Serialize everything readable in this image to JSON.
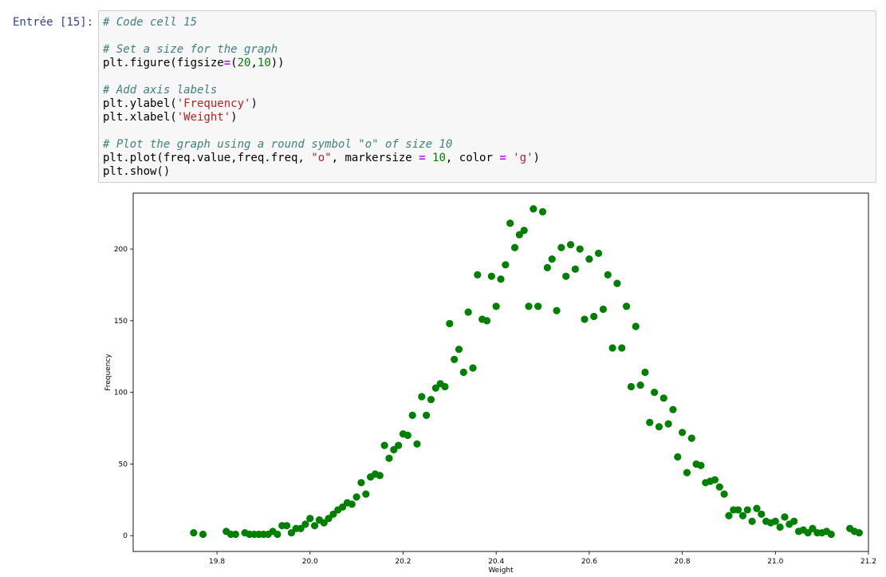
{
  "cell": {
    "prompt": "Entrée [15]:",
    "code_lines": [
      [
        {
          "t": "comment",
          "s": "# Code cell 15"
        }
      ],
      [],
      [
        {
          "t": "comment",
          "s": "# Set a size for the graph"
        }
      ],
      [
        {
          "t": "text",
          "s": "plt.figure(figsize"
        },
        {
          "t": "op",
          "s": "="
        },
        {
          "t": "text",
          "s": "("
        },
        {
          "t": "number",
          "s": "20"
        },
        {
          "t": "text",
          "s": ","
        },
        {
          "t": "number",
          "s": "10"
        },
        {
          "t": "text",
          "s": "))"
        }
      ],
      [],
      [
        {
          "t": "comment",
          "s": "# Add axis labels"
        }
      ],
      [
        {
          "t": "text",
          "s": "plt.ylabel("
        },
        {
          "t": "string",
          "s": "'Frequency'"
        },
        {
          "t": "text",
          "s": ")"
        }
      ],
      [
        {
          "t": "text",
          "s": "plt.xlabel("
        },
        {
          "t": "string",
          "s": "'Weight'"
        },
        {
          "t": "text",
          "s": ")"
        }
      ],
      [],
      [
        {
          "t": "comment",
          "s": "# Plot the graph using a round symbol \"o\" of size 10"
        }
      ],
      [
        {
          "t": "text",
          "s": "plt.plot(freq.value,freq.freq, "
        },
        {
          "t": "string",
          "s": "\"o\""
        },
        {
          "t": "text",
          "s": ", markersize "
        },
        {
          "t": "op",
          "s": "="
        },
        {
          "t": "text",
          "s": " "
        },
        {
          "t": "number",
          "s": "10"
        },
        {
          "t": "text",
          "s": ", color "
        },
        {
          "t": "op",
          "s": "="
        },
        {
          "t": "text",
          "s": " "
        },
        {
          "t": "string",
          "s": "'g'"
        },
        {
          "t": "text",
          "s": ")"
        }
      ],
      [
        {
          "t": "text",
          "s": "plt.show()"
        }
      ]
    ]
  },
  "colors": {
    "prompt": "#303f9f",
    "marker": "#008000",
    "code_bg": "#f7f7f7"
  },
  "chart_data": {
    "type": "scatter",
    "title": "",
    "xlabel": "Weight",
    "ylabel": "Frequency",
    "xlim": [
      19.62,
      21.2
    ],
    "ylim": [
      -11,
      239
    ],
    "xticks": [
      "19.8",
      "20.0",
      "20.2",
      "20.4",
      "20.6",
      "20.8",
      "21.0",
      "21.2"
    ],
    "yticks": [
      "0",
      "50",
      "100",
      "150",
      "200"
    ],
    "grid": false,
    "marker": "o",
    "color": "#008000",
    "points": [
      [
        19.75,
        2
      ],
      [
        19.77,
        1
      ],
      [
        19.82,
        3
      ],
      [
        19.83,
        1
      ],
      [
        19.84,
        1
      ],
      [
        19.86,
        2
      ],
      [
        19.87,
        1
      ],
      [
        19.88,
        1
      ],
      [
        19.89,
        1
      ],
      [
        19.9,
        1
      ],
      [
        19.91,
        1
      ],
      [
        19.92,
        3
      ],
      [
        19.93,
        1
      ],
      [
        19.94,
        7
      ],
      [
        19.95,
        7
      ],
      [
        19.96,
        2
      ],
      [
        19.97,
        5
      ],
      [
        19.98,
        5
      ],
      [
        19.99,
        8
      ],
      [
        20.0,
        12
      ],
      [
        20.01,
        7
      ],
      [
        20.02,
        11
      ],
      [
        20.03,
        9
      ],
      [
        20.04,
        12
      ],
      [
        20.05,
        15
      ],
      [
        20.06,
        18
      ],
      [
        20.07,
        20
      ],
      [
        20.08,
        23
      ],
      [
        20.09,
        22
      ],
      [
        20.1,
        27
      ],
      [
        20.11,
        37
      ],
      [
        20.12,
        29
      ],
      [
        20.13,
        41
      ],
      [
        20.14,
        43
      ],
      [
        20.15,
        42
      ],
      [
        20.16,
        63
      ],
      [
        20.17,
        54
      ],
      [
        20.18,
        60
      ],
      [
        20.19,
        63
      ],
      [
        20.2,
        71
      ],
      [
        20.21,
        70
      ],
      [
        20.22,
        84
      ],
      [
        20.23,
        64
      ],
      [
        20.24,
        97
      ],
      [
        20.25,
        84
      ],
      [
        20.26,
        95
      ],
      [
        20.27,
        103
      ],
      [
        20.28,
        106
      ],
      [
        20.29,
        104
      ],
      [
        20.3,
        148
      ],
      [
        20.31,
        123
      ],
      [
        20.32,
        130
      ],
      [
        20.33,
        114
      ],
      [
        20.34,
        156
      ],
      [
        20.35,
        117
      ],
      [
        20.36,
        182
      ],
      [
        20.37,
        151
      ],
      [
        20.38,
        150
      ],
      [
        20.39,
        181
      ],
      [
        20.4,
        160
      ],
      [
        20.41,
        179
      ],
      [
        20.42,
        189
      ],
      [
        20.43,
        218
      ],
      [
        20.44,
        201
      ],
      [
        20.45,
        210
      ],
      [
        20.46,
        213
      ],
      [
        20.47,
        160
      ],
      [
        20.48,
        228
      ],
      [
        20.49,
        160
      ],
      [
        20.5,
        226
      ],
      [
        20.51,
        187
      ],
      [
        20.52,
        193
      ],
      [
        20.53,
        157
      ],
      [
        20.54,
        201
      ],
      [
        20.55,
        181
      ],
      [
        20.56,
        203
      ],
      [
        20.57,
        186
      ],
      [
        20.58,
        200
      ],
      [
        20.59,
        151
      ],
      [
        20.6,
        193
      ],
      [
        20.61,
        153
      ],
      [
        20.62,
        197
      ],
      [
        20.63,
        158
      ],
      [
        20.64,
        182
      ],
      [
        20.65,
        131
      ],
      [
        20.66,
        176
      ],
      [
        20.67,
        131
      ],
      [
        20.68,
        160
      ],
      [
        20.69,
        104
      ],
      [
        20.7,
        146
      ],
      [
        20.71,
        105
      ],
      [
        20.72,
        114
      ],
      [
        20.73,
        79
      ],
      [
        20.74,
        100
      ],
      [
        20.75,
        76
      ],
      [
        20.76,
        96
      ],
      [
        20.77,
        78
      ],
      [
        20.78,
        88
      ],
      [
        20.79,
        55
      ],
      [
        20.8,
        72
      ],
      [
        20.81,
        44
      ],
      [
        20.82,
        68
      ],
      [
        20.83,
        50
      ],
      [
        20.84,
        49
      ],
      [
        20.85,
        37
      ],
      [
        20.86,
        38
      ],
      [
        20.87,
        39
      ],
      [
        20.88,
        34
      ],
      [
        20.89,
        29
      ],
      [
        20.9,
        14
      ],
      [
        20.91,
        18
      ],
      [
        20.92,
        18
      ],
      [
        20.93,
        14
      ],
      [
        20.94,
        18
      ],
      [
        20.95,
        10
      ],
      [
        20.96,
        19
      ],
      [
        20.97,
        15
      ],
      [
        20.98,
        10
      ],
      [
        20.99,
        9
      ],
      [
        21.0,
        10
      ],
      [
        21.01,
        6
      ],
      [
        21.02,
        13
      ],
      [
        21.03,
        8
      ],
      [
        21.04,
        10
      ],
      [
        21.05,
        3
      ],
      [
        21.06,
        4
      ],
      [
        21.07,
        2
      ],
      [
        21.08,
        5
      ],
      [
        21.09,
        2
      ],
      [
        21.1,
        2
      ],
      [
        21.11,
        3
      ],
      [
        21.12,
        1
      ],
      [
        21.16,
        5
      ],
      [
        21.17,
        3
      ],
      [
        21.18,
        2
      ]
    ]
  }
}
